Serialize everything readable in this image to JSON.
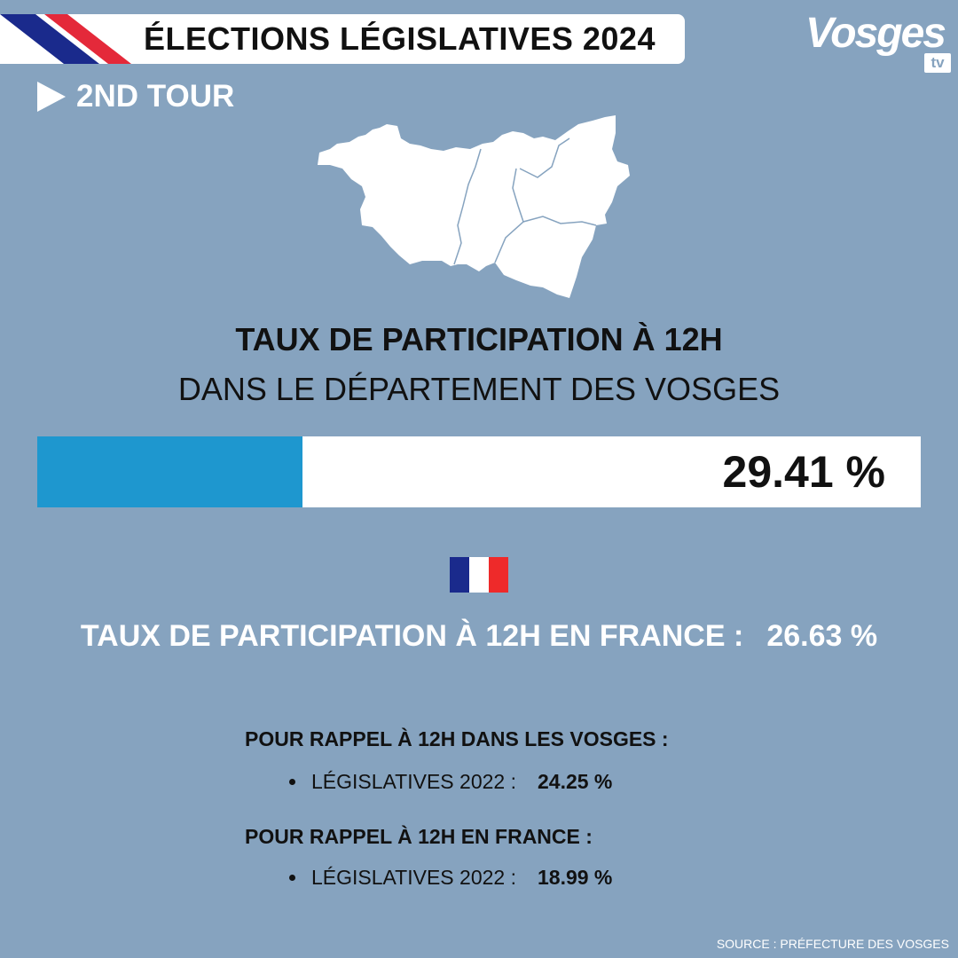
{
  "header": {
    "title": "ÉLECTIONS LÉGISLATIVES 2024",
    "round": "2ND TOUR",
    "logo": {
      "word": "Vosges",
      "suffix": "tv"
    }
  },
  "main": {
    "title": "TAUX DE PARTICIPATION À 12H",
    "subtitle": "DANS LE DÉPARTEMENT DES VOSGES",
    "department_rate": {
      "label": "29.41 %",
      "fraction": 0.3
    },
    "france_rate": {
      "label": "TAUX DE PARTICIPATION À 12H EN FRANCE :",
      "value": "26.63 %"
    }
  },
  "reminders": [
    {
      "title": "POUR RAPPEL À 12H DANS LES VOSGES :",
      "item_label": "LÉGISLATIVES 2022 :",
      "item_value": "24.25 %"
    },
    {
      "title": "POUR RAPPEL À 12H EN FRANCE :",
      "item_label": "LÉGISLATIVES 2022 :",
      "item_value": "18.99 %"
    }
  ],
  "footer": {
    "source": "SOURCE : PRÉFECTURE DES VOSGES"
  },
  "colors": {
    "background": "#86a3bf",
    "bar_fill": "#1e97cf",
    "flag_blue": "#1a2a8c",
    "flag_white": "#ffffff",
    "flag_red": "#ee2a2a"
  }
}
